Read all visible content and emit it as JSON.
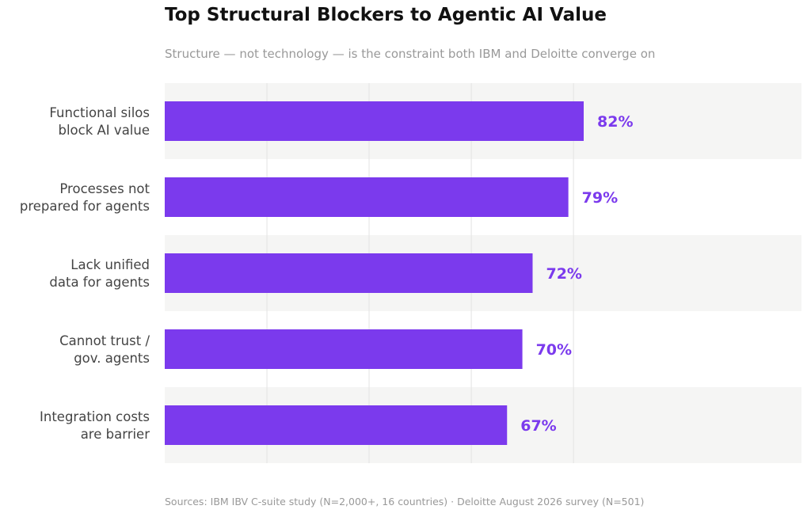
{
  "chart_data": {
    "type": "bar",
    "orientation": "horizontal",
    "title": "Top Structural Blockers to Agentic AI Value",
    "subtitle": "Structure — not technology — is the constraint both IBM and Deloitte converge on",
    "categories": [
      [
        "Functional silos",
        "block AI value"
      ],
      [
        "Processes not",
        "prepared for agents"
      ],
      [
        "Lack unified",
        "data for agents"
      ],
      [
        "Cannot trust /",
        "gov. agents"
      ],
      [
        "Integration costs",
        "are barrier"
      ]
    ],
    "values": [
      82,
      79,
      72,
      70,
      67
    ],
    "value_labels": [
      "82%",
      "79%",
      "72%",
      "70%",
      "67%"
    ],
    "xlim": [
      0,
      100
    ],
    "grid": true,
    "alternating_row_bands": true,
    "legend": "none",
    "source": "Sources: IBM IBV C-suite study (N=2,000+, 16 countries)  ·  Deloitte August 2026 survey (N=501)"
  },
  "colors": {
    "bar": "#7B3AED",
    "value_label": "#7B3AED",
    "row_band": "#F5F5F4",
    "grid": "#E3E3E3",
    "title": "#111111",
    "muted_text": "#999999",
    "category_text": "#444444"
  }
}
